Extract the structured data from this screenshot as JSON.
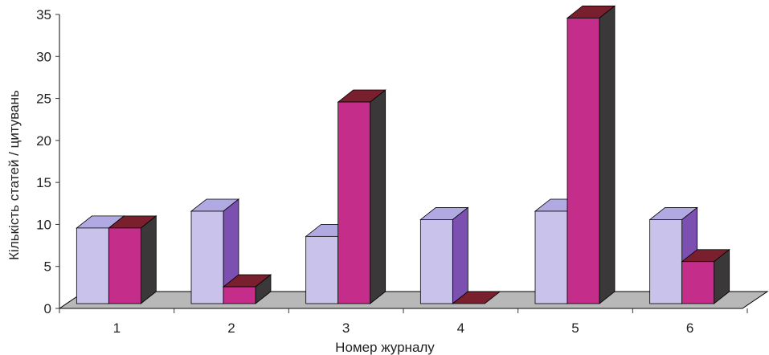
{
  "chart_data": {
    "type": "bar",
    "title": "",
    "xlabel": "Номер журналу",
    "ylabel": "Кількість статей / цитувань",
    "ylim": [
      0,
      35
    ],
    "yticks": [
      0,
      5,
      10,
      15,
      20,
      25,
      30,
      35
    ],
    "categories": [
      "1",
      "2",
      "3",
      "4",
      "5",
      "6"
    ],
    "series": [
      {
        "values": [
          9,
          11,
          8,
          10,
          11,
          10
        ]
      },
      {
        "values": [
          9,
          2,
          24,
          0,
          34,
          5
        ]
      }
    ],
    "grid": false,
    "legend": "none",
    "three_d": true,
    "colors": {
      "series_0": {
        "front": "#c9c3ec",
        "top": "#b1a9e2",
        "side": "#7b50b0"
      },
      "series_1": {
        "front": "#c42d8a",
        "top": "#7a1f2e",
        "side": "#3a3838"
      },
      "floor": "#b8b8b8",
      "axis": "#333333"
    }
  }
}
